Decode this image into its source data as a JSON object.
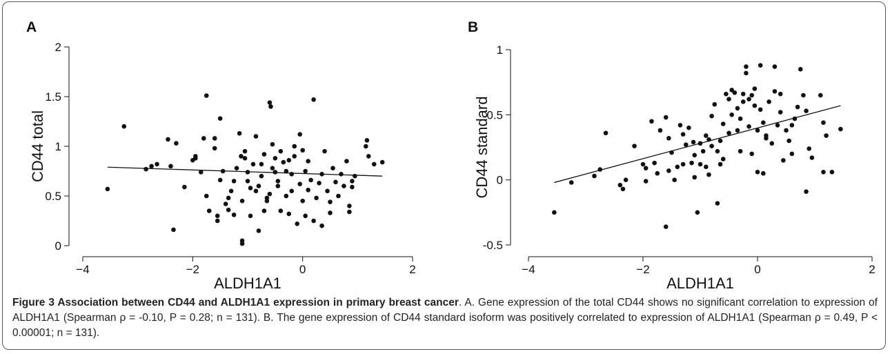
{
  "chart_data": [
    {
      "type": "scatter",
      "panel": "A",
      "xlabel": "ALDH1A1",
      "ylabel": "CD44 total",
      "xlim": [
        -4,
        2
      ],
      "ylim": [
        0,
        2
      ],
      "xticks": [
        {
          "value": -4,
          "label": "−4"
        },
        {
          "value": -2,
          "label": "−2"
        },
        0,
        2
      ],
      "yticks": [
        0,
        0.5,
        1,
        1.5,
        2
      ],
      "x": [
        -3.55,
        -3.25,
        -2.85,
        -2.75,
        -2.65,
        -2.45,
        -2.4,
        -2.35,
        -2.3,
        -2.15,
        -2.0,
        -1.95,
        -1.95,
        -1.85,
        -1.8,
        -1.75,
        -1.75,
        -1.7,
        -1.6,
        -1.6,
        -1.55,
        -1.55,
        -1.5,
        -1.45,
        -1.4,
        -1.35,
        -1.35,
        -1.3,
        -1.25,
        -1.25,
        -1.2,
        -1.15,
        -1.12,
        -1.1,
        -1.1,
        -1.1,
        -1.05,
        -1.05,
        -1.0,
        -1.0,
        -0.95,
        -0.95,
        -0.9,
        -0.85,
        -0.85,
        -0.8,
        -0.8,
        -0.75,
        -0.75,
        -0.7,
        -0.7,
        -0.65,
        -0.65,
        -0.6,
        -0.6,
        -0.58,
        -0.55,
        -0.55,
        -0.5,
        -0.5,
        -0.45,
        -0.45,
        -0.4,
        -0.35,
        -0.3,
        -0.3,
        -0.25,
        -0.2,
        -0.2,
        -0.15,
        -0.15,
        -0.1,
        -0.05,
        -0.05,
        0.0,
        0.0,
        0.05,
        0.05,
        0.1,
        0.1,
        0.15,
        0.2,
        0.25,
        0.3,
        0.35,
        0.35,
        0.4,
        0.45,
        0.5,
        0.5,
        0.55,
        0.6,
        0.65,
        0.7,
        0.75,
        0.8,
        0.85,
        0.9,
        0.95,
        1.15,
        1.17,
        1.2,
        1.3,
        1.45,
        0.85,
        -0.4,
        -1.5,
        0.2,
        0.9,
        -0.25
      ],
      "values": [
        0.57,
        1.2,
        0.77,
        0.8,
        0.82,
        1.07,
        0.8,
        0.16,
        1.03,
        0.59,
        0.86,
        0.88,
        0.9,
        0.74,
        1.08,
        1.51,
        0.5,
        0.35,
        1.08,
        0.98,
        0.3,
        0.25,
        1.28,
        0.75,
        0.42,
        0.48,
        0.36,
        0.55,
        0.31,
        0.65,
        0.78,
        1.13,
        0.9,
        0.02,
        0.05,
        0.45,
        0.88,
        0.95,
        0.74,
        0.65,
        0.58,
        0.3,
        0.82,
        1.1,
        0.55,
        0.15,
        0.6,
        0.7,
        0.82,
        0.35,
        0.92,
        0.48,
        0.45,
        0.52,
        1.44,
        1.4,
        0.78,
        1.02,
        0.88,
        0.74,
        0.65,
        0.6,
        0.95,
        0.84,
        0.75,
        0.5,
        0.32,
        0.55,
        0.72,
        0.9,
        1.0,
        0.22,
        1.12,
        0.62,
        0.96,
        0.45,
        0.3,
        0.75,
        0.56,
        0.85,
        0.66,
        1.47,
        0.48,
        0.63,
        0.72,
        0.2,
        0.95,
        0.55,
        0.44,
        0.33,
        0.78,
        0.64,
        0.5,
        0.72,
        0.6,
        0.85,
        0.4,
        0.65,
        0.7,
        1.0,
        1.06,
        0.9,
        0.82,
        0.84,
        0.34,
        0.35,
        0.66,
        0.25,
        0.59,
        0.86
      ],
      "fit_x": [
        -3.55,
        1.45
      ],
      "fit_y": [
        0.79,
        0.7
      ]
    },
    {
      "type": "scatter",
      "panel": "B",
      "xlabel": "ALDH1A1",
      "ylabel": "CD44 standard",
      "xlim": [
        -4,
        2
      ],
      "ylim": [
        -0.5,
        1
      ],
      "xticks": [
        {
          "value": -4,
          "label": "−4"
        },
        {
          "value": -2,
          "label": "−2"
        },
        0,
        2
      ],
      "yticks": [
        -0.5,
        0,
        0.5,
        1
      ],
      "x": [
        -3.55,
        -3.25,
        -2.85,
        -2.75,
        -2.65,
        -2.4,
        -2.35,
        -2.3,
        -2.15,
        -2.0,
        -1.95,
        -1.95,
        -1.85,
        -1.8,
        -1.75,
        -1.6,
        -1.6,
        -1.55,
        -1.55,
        -1.5,
        -1.45,
        -1.4,
        -1.35,
        -1.3,
        -1.25,
        -1.2,
        -1.15,
        -1.12,
        -1.1,
        -1.1,
        -1.05,
        -1.0,
        -1.0,
        -0.95,
        -0.9,
        -0.85,
        -0.85,
        -0.8,
        -0.8,
        -0.75,
        -0.7,
        -0.7,
        -0.65,
        -0.6,
        -0.6,
        -0.55,
        -0.5,
        -0.5,
        -0.45,
        -0.45,
        -0.4,
        -0.35,
        -0.3,
        -0.3,
        -0.25,
        -0.2,
        -0.2,
        -0.15,
        -0.15,
        -0.1,
        -0.1,
        -0.05,
        -0.05,
        0.0,
        0.0,
        0.05,
        0.05,
        0.1,
        0.1,
        0.15,
        0.2,
        0.25,
        0.3,
        0.3,
        0.35,
        0.4,
        0.45,
        0.5,
        0.55,
        0.6,
        0.65,
        0.7,
        0.75,
        0.8,
        0.85,
        0.85,
        0.9,
        0.95,
        1.1,
        1.15,
        1.15,
        1.2,
        1.3,
        1.45,
        -0.35,
        -1.3,
        0.15,
        -0.65,
        -0.25,
        0.4,
        -0.9,
        -1.7,
        0.6
      ],
      "values": [
        -0.25,
        -0.02,
        0.03,
        0.08,
        0.36,
        -0.04,
        -0.07,
        0.0,
        0.26,
        0.12,
        0.09,
        -0.01,
        0.45,
        0.13,
        0.05,
        -0.36,
        0.48,
        0.07,
        0.32,
        0.21,
        0.0,
        0.1,
        0.42,
        0.12,
        0.27,
        0.4,
        0.13,
        0.29,
        0.02,
        0.19,
        -0.25,
        0.28,
        0.12,
        0.22,
        0.34,
        0.31,
        0.04,
        0.49,
        0.26,
        0.58,
        -0.18,
        0.22,
        0.3,
        0.43,
        0.16,
        0.66,
        0.62,
        0.36,
        0.69,
        0.5,
        0.67,
        0.55,
        0.47,
        0.22,
        0.6,
        0.82,
        0.87,
        0.62,
        0.41,
        0.65,
        0.2,
        0.57,
        0.7,
        0.38,
        0.06,
        0.88,
        0.54,
        0.44,
        0.05,
        0.32,
        0.6,
        0.28,
        0.68,
        0.87,
        0.42,
        0.52,
        0.15,
        0.38,
        0.3,
        0.2,
        0.47,
        0.56,
        0.85,
        0.65,
        0.53,
        -0.09,
        0.24,
        0.17,
        0.65,
        0.44,
        0.06,
        0.34,
        0.06,
        0.39,
        0.38,
        0.35,
        0.34,
        0.12,
        0.66,
        0.66,
        0.1,
        0.38,
        0.42
      ],
      "fit_x": [
        -3.55,
        1.45
      ],
      "fit_y": [
        -0.02,
        0.57
      ]
    }
  ],
  "caption": {
    "title": "Figure 3 Association between CD44 and ALDH1A1 expression in primary breast cancer",
    "text": ". A. Gene expression of the total CD44 shows no significant correlation to expression of ALDH1A1 (Spearman ρ = -0.10, P = 0.28; n = 131). B. The gene expression of CD44 standard isoform was positively correlated to expression of ALDH1A1 (Spearman ρ = 0.49, P < 0.00001; n = 131)."
  }
}
